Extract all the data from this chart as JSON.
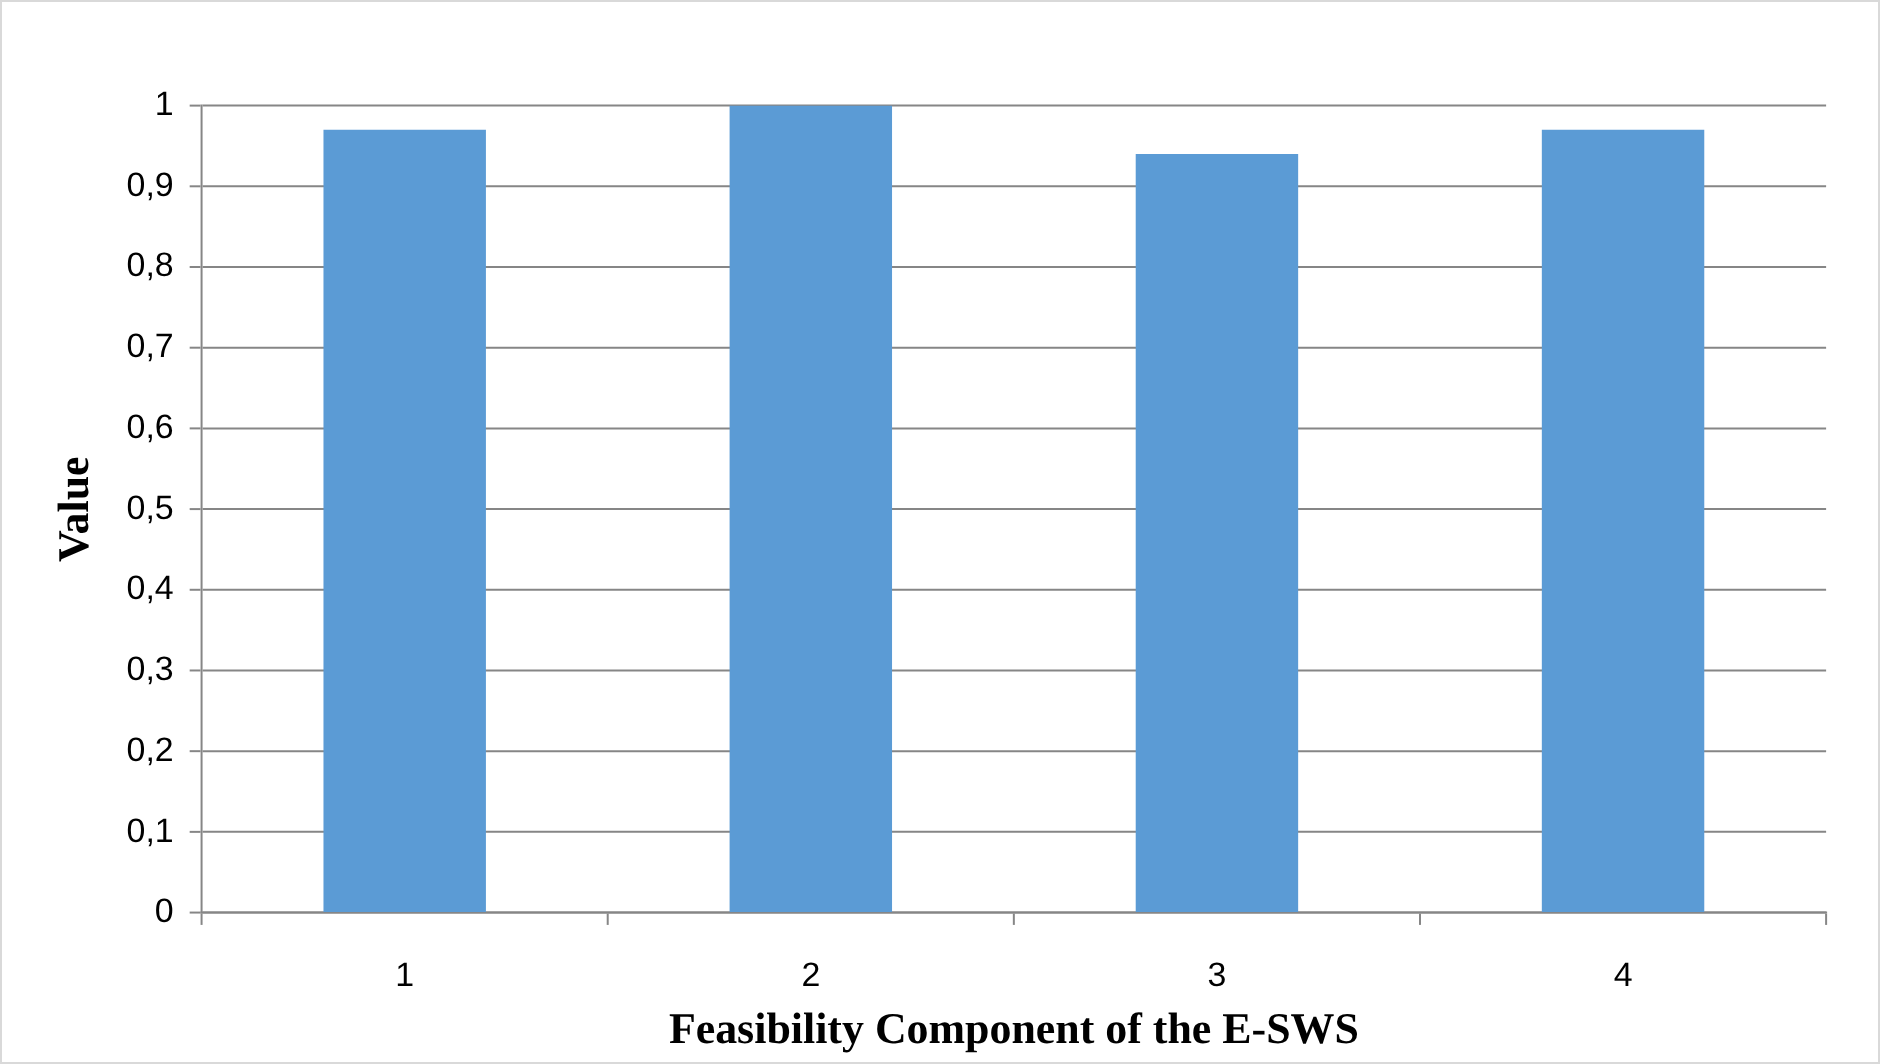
{
  "chart_data": {
    "type": "bar",
    "xlabel": "Feasibility Component of the E-SWS",
    "ylabel": "Value",
    "categories": [
      "1",
      "2",
      "3",
      "4"
    ],
    "values": [
      0.97,
      1,
      0.94,
      0.97
    ],
    "color": "#5b9bd5",
    "ylim": [
      0,
      1
    ],
    "yticks": [
      0,
      {
        "value": 0.1,
        "label": "0,1"
      },
      {
        "value": 0.2,
        "label": "0,2"
      },
      {
        "value": 0.3,
        "label": "0,3"
      },
      {
        "value": 0.4,
        "label": "0,4"
      },
      {
        "value": 0.5,
        "label": "0,5"
      },
      {
        "value": 0.6,
        "label": "0,6"
      },
      {
        "value": 0.7,
        "label": "0,7"
      },
      {
        "value": 0.8,
        "label": "0,8"
      },
      {
        "value": 0.9,
        "label": "0,9"
      },
      1
    ],
    "grid": "y"
  }
}
